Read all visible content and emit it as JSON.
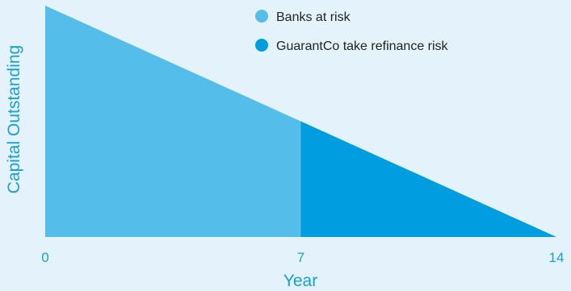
{
  "chart_data": {
    "type": "area",
    "title": "",
    "xlabel": "Year",
    "ylabel": "Capital Outstanding",
    "x_ticks": [
      "0",
      "7",
      "14"
    ],
    "xlim": [
      0,
      14
    ],
    "ylim": [
      0,
      1
    ],
    "grid": false,
    "legend_position": "top-right",
    "series": [
      {
        "name": "Banks at risk",
        "color": "#55bde9",
        "x": [
          0,
          7
        ],
        "y": [
          1,
          0.5
        ]
      },
      {
        "name": "GuarantCo take refinance risk",
        "color": "#009ee0",
        "x": [
          7,
          14
        ],
        "y": [
          0.5,
          0
        ]
      }
    ]
  }
}
